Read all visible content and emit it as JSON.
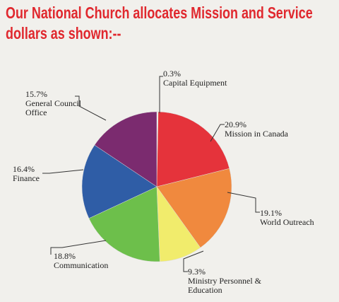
{
  "chart_data": {
    "type": "pie",
    "title": "Our National Church allocates Mission and Service dollars as shown:--",
    "categories": [
      "Capital Equipment",
      "Mission in Canada",
      "World Outreach",
      "Ministry Personnel & Education",
      "Communication",
      "Finance",
      "General Council Office"
    ],
    "values": [
      0.3,
      20.9,
      19.1,
      9.3,
      18.8,
      16.4,
      15.7
    ],
    "value_labels": [
      "0.3%",
      "20.9%",
      "19.1%",
      "9.3%",
      "18.8%",
      "16.4%",
      "15.7%"
    ],
    "colors": [
      "#f4f2ee",
      "#e5333b",
      "#f0893e",
      "#f1ec6c",
      "#6dbf4b",
      "#2f5da6",
      "#7b2b6f"
    ]
  }
}
